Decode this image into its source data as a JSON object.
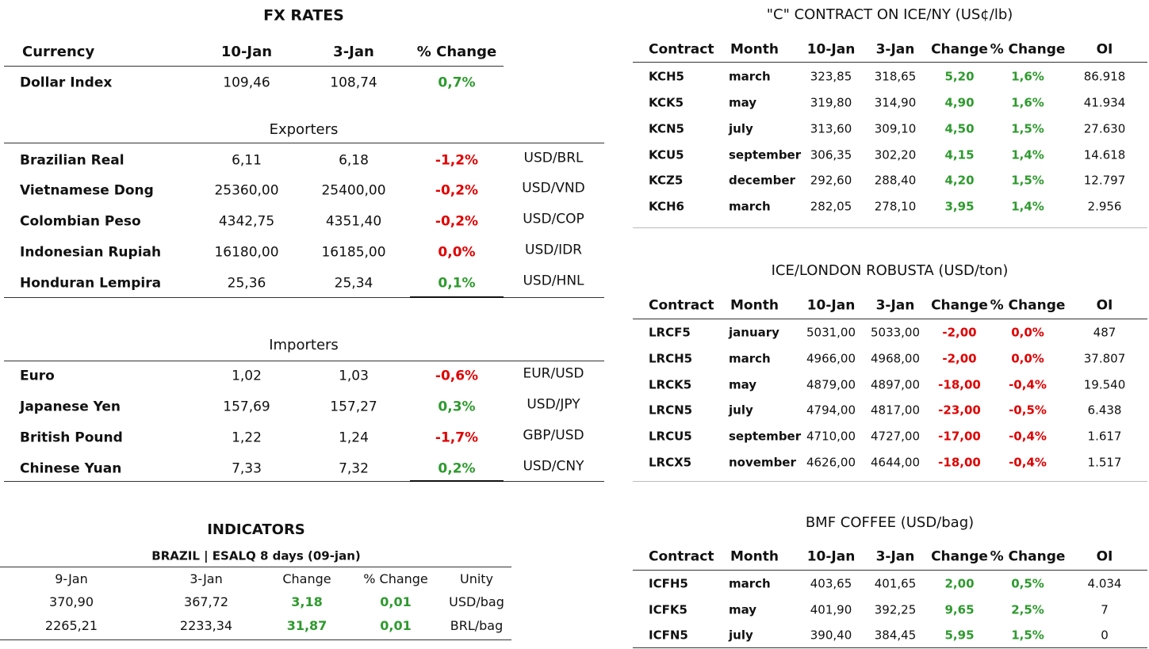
{
  "fx": {
    "title": "FX RATES",
    "header": [
      "Currency",
      "10-Jan",
      "3-Jan",
      "% Change"
    ],
    "dollar_index": [
      "Dollar Index",
      "109,46",
      "108,74",
      "0,7%"
    ],
    "dollar_index_color": "#2e9a2e",
    "exporters": {
      "title": "Exporters",
      "rows": [
        [
          "Brazilian Real",
          "6,11",
          "6,18",
          "-1,2%",
          "USD/BRL"
        ],
        [
          "Vietnamese Dong",
          "25360,00",
          "25400,00",
          "-0,2%",
          "USD/VND"
        ],
        [
          "Colombian Peso",
          "4342,75",
          "4351,40",
          "-0,2%",
          "USD/COP"
        ],
        [
          "Indonesian Rupiah",
          "16180,00",
          "16185,00",
          "0,0%",
          "USD/IDR"
        ],
        [
          "Honduran Lempira",
          "25,36",
          "25,34",
          "0,1%",
          "USD/HNL"
        ]
      ],
      "colors": [
        "#e00000",
        "#e00000",
        "#e00000",
        "#e00000",
        "#2e9a2e"
      ]
    },
    "importers": {
      "title": "Importers",
      "rows": [
        [
          "Euro",
          "1,02",
          "1,03",
          "-0,6%",
          "EUR/USD"
        ],
        [
          "Japanese Yen",
          "157,69",
          "157,27",
          "0,3%",
          "USD/JPY"
        ],
        [
          "British Pound",
          "1,22",
          "1,24",
          "-1,7%",
          "GBP/USD"
        ],
        [
          "Chinese Yuan",
          "7,33",
          "7,32",
          "0,2%",
          "USD/CNY"
        ]
      ],
      "colors": [
        "#e00000",
        "#2e9a2e",
        "#e00000",
        "#2e9a2e"
      ]
    }
  },
  "indicators": {
    "title": "INDICATORS",
    "subtitle": "BRAZIL | ESALQ 8 days (09-jan)",
    "header": [
      "9-Jan",
      "3-Jan",
      "Change",
      "% Change",
      "Unity"
    ],
    "rows": [
      [
        "370,90",
        "367,72",
        "3,18",
        "0,01",
        "USD/bag"
      ],
      [
        "2265,21",
        "2233,34",
        "31,87",
        "0,01",
        "BRL/bag"
      ]
    ],
    "colors": [
      "#2e9a2e",
      "#2e9a2e"
    ]
  },
  "contracts": [
    {
      "title": "\"C\" CONTRACT ON ICE/NY (US¢/lb)",
      "header": [
        "Contract",
        "Month",
        "10-Jan",
        "3-Jan",
        "Change",
        "% Change",
        "OI"
      ],
      "rows": [
        [
          "KCH5",
          "march",
          "323,85",
          "318,65",
          "5,20",
          "1,6%",
          "86.918"
        ],
        [
          "KCK5",
          "may",
          "319,80",
          "314,90",
          "4,90",
          "1,6%",
          "41.934"
        ],
        [
          "KCN5",
          "july",
          "313,60",
          "309,10",
          "4,50",
          "1,5%",
          "27.630"
        ],
        [
          "KCU5",
          "september",
          "306,35",
          "302,20",
          "4,15",
          "1,4%",
          "14.618"
        ],
        [
          "KCZ5",
          "december",
          "292,60",
          "288,40",
          "4,20",
          "1,5%",
          "12.797"
        ],
        [
          "KCH6",
          "march",
          "282,05",
          "278,10",
          "3,95",
          "1,4%",
          "2.956"
        ]
      ],
      "colors": [
        "#2e9a2e",
        "#2e9a2e",
        "#2e9a2e",
        "#2e9a2e",
        "#2e9a2e",
        "#2e9a2e"
      ]
    },
    {
      "title": "ICE/LONDON ROBUSTA (USD/ton)",
      "header": [
        "Contract",
        "Month",
        "10-Jan",
        "3-Jan",
        "Change",
        "% Change",
        "OI"
      ],
      "rows": [
        [
          "LRCF5",
          "january",
          "5031,00",
          "5033,00",
          "-2,00",
          "0,0%",
          "487"
        ],
        [
          "LRCH5",
          "march",
          "4966,00",
          "4968,00",
          "-2,00",
          "0,0%",
          "37.807"
        ],
        [
          "LRCK5",
          "may",
          "4879,00",
          "4897,00",
          "-18,00",
          "-0,4%",
          "19.540"
        ],
        [
          "LRCN5",
          "july",
          "4794,00",
          "4817,00",
          "-23,00",
          "-0,5%",
          "6.438"
        ],
        [
          "LRCU5",
          "september",
          "4710,00",
          "4727,00",
          "-17,00",
          "-0,4%",
          "1.617"
        ],
        [
          "LRCX5",
          "november",
          "4626,00",
          "4644,00",
          "-18,00",
          "-0,4%",
          "1.517"
        ]
      ],
      "colors": [
        "#e00000",
        "#e00000",
        "#e00000",
        "#e00000",
        "#e00000",
        "#e00000"
      ]
    },
    {
      "title": "BMF COFFEE (USD/bag)",
      "header": [
        "Contract",
        "Month",
        "10-Jan",
        "3-Jan",
        "Change",
        "% Change",
        "OI"
      ],
      "rows": [
        [
          "ICFH5",
          "march",
          "403,65",
          "401,65",
          "2,00",
          "0,5%",
          "4.034"
        ],
        [
          "ICFK5",
          "may",
          "401,90",
          "392,25",
          "9,65",
          "2,5%",
          "7"
        ],
        [
          "ICFN5",
          "july",
          "390,40",
          "384,45",
          "5,95",
          "1,5%",
          "0"
        ]
      ],
      "colors": [
        "#2e9a2e",
        "#2e9a2e",
        "#2e9a2e"
      ]
    }
  ]
}
